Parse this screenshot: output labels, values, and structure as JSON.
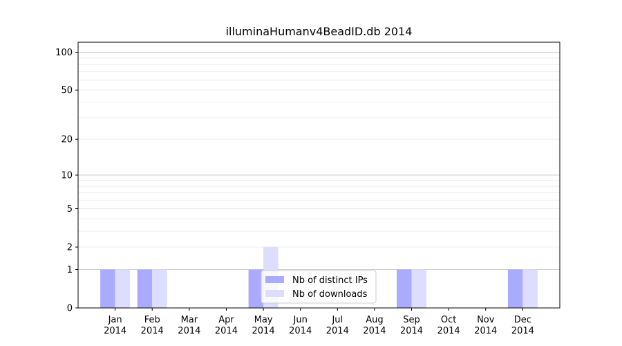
{
  "chart_data": {
    "type": "bar",
    "title": "illuminaHumanv4BeadID.db 2014",
    "xlabel": "",
    "ylabel": "",
    "yscale": "log(1+y)",
    "ylim": [
      0,
      120
    ],
    "yticks": [
      0,
      1,
      2,
      5,
      10,
      20,
      50,
      100
    ],
    "grid": true,
    "legend_position": "lower center",
    "categories": [
      [
        "Jan",
        "2014"
      ],
      [
        "Feb",
        "2014"
      ],
      [
        "Mar",
        "2014"
      ],
      [
        "Apr",
        "2014"
      ],
      [
        "May",
        "2014"
      ],
      [
        "Jun",
        "2014"
      ],
      [
        "Jul",
        "2014"
      ],
      [
        "Aug",
        "2014"
      ],
      [
        "Sep",
        "2014"
      ],
      [
        "Oct",
        "2014"
      ],
      [
        "Nov",
        "2014"
      ],
      [
        "Dec",
        "2014"
      ]
    ],
    "series": [
      {
        "name": "Nb of distinct IPs",
        "color": "#aaaaff",
        "values": [
          1,
          1,
          0,
          0,
          1,
          0,
          0,
          0,
          1,
          0,
          0,
          1
        ]
      },
      {
        "name": "Nb of downloads",
        "color": "#ddddff",
        "values": [
          1,
          1,
          0,
          0,
          2,
          0,
          0,
          0,
          1,
          0,
          0,
          1
        ]
      }
    ]
  }
}
